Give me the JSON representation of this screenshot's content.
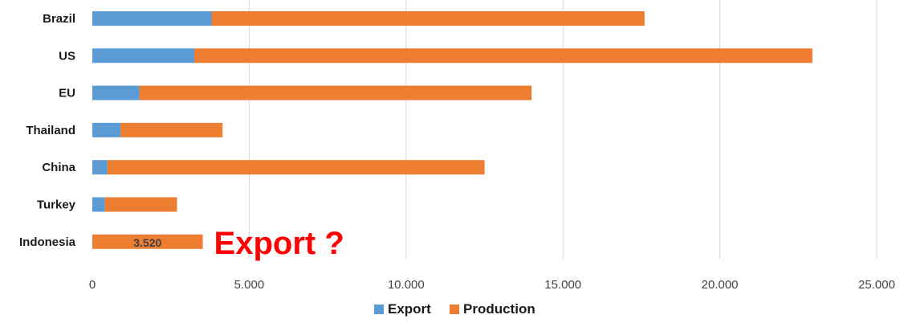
{
  "chart_data": {
    "type": "bar",
    "orientation": "horizontal",
    "stacked": true,
    "categories": [
      "Brazil",
      "US",
      "EU",
      "Thailand",
      "China",
      "Turkey",
      "Indonesia"
    ],
    "series": [
      {
        "name": "Export",
        "color": "#5b9bd5",
        "values": [
          3800,
          3250,
          1500,
          900,
          480,
          400,
          0
        ]
      },
      {
        "name": "Production",
        "color": "#ed7d31",
        "values": [
          13800,
          19700,
          12500,
          3250,
          12020,
          2300,
          3520
        ]
      }
    ],
    "xlim": [
      0,
      25000
    ],
    "xticks": [
      0,
      5000,
      10000,
      15000,
      20000,
      25000
    ],
    "xtick_labels": [
      "0",
      "5.000",
      "10.000",
      "15.000",
      "20.000",
      "25.000"
    ],
    "grid": "vertical",
    "legend_position": "bottom",
    "data_labels": [
      {
        "category": "Indonesia",
        "series": "Production",
        "text": "3.520"
      }
    ],
    "annotations": [
      {
        "text": "Export ?",
        "color": "#ff0000",
        "category": "Indonesia"
      }
    ],
    "title": "",
    "xlabel": "",
    "ylabel": ""
  }
}
